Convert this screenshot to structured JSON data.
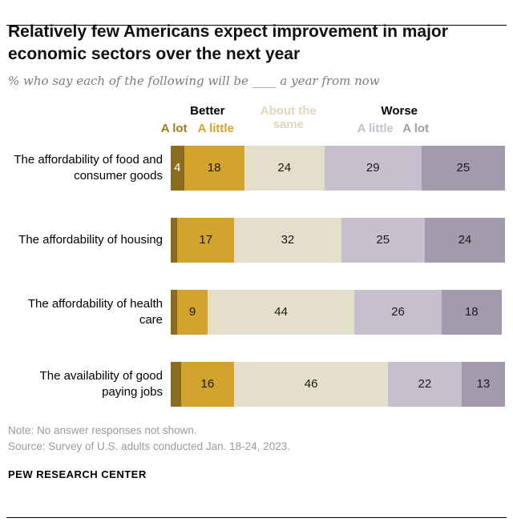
{
  "page": {
    "title": "Relatively few Americans expect improvement in major economic sectors over the next year",
    "subtitle": "% who say each of the following will be ____ a year from now",
    "note": "Note: No answer responses not shown.",
    "source": "Source: Survey of U.S. adults conducted Jan. 18-24, 2023.",
    "footer": "PEW RESEARCH CENTER"
  },
  "legend": {
    "better": "Better",
    "worse": "Worse",
    "a_lot_better": "A lot",
    "a_little_better": "A little",
    "about_same": "About the same",
    "a_little_worse": "A little",
    "a_lot_worse": "A lot",
    "colors": {
      "a_lot_better": "#a07c1f",
      "a_little_better": "#d2a42d",
      "about_same": "#ddd7bc",
      "a_little_worse": "#c6c0ce",
      "a_lot_worse": "#a49aae"
    }
  },
  "chart_data": {
    "type": "bar",
    "orientation": "horizontal-stacked",
    "title": "Relatively few Americans expect improvement in major economic sectors over the next year",
    "xlim": [
      0,
      100
    ],
    "categories": [
      "The affordability of food and consumer goods",
      "The affordability of housing",
      "The affordability of health care",
      "The availability of good paying jobs"
    ],
    "series": [
      {
        "name": "A lot better",
        "color": "#8c6b1d",
        "text_color": "#ffffff",
        "values": [
          4,
          2,
          2,
          3
        ],
        "labels": [
          "4",
          "",
          "",
          ""
        ]
      },
      {
        "name": "A little better",
        "color": "#d2a42d",
        "text_color": "#1a1a1a",
        "values": [
          18,
          17,
          9,
          16
        ],
        "labels": [
          "18",
          "17",
          "9",
          "16"
        ]
      },
      {
        "name": "About the same",
        "color": "#e4dfca",
        "text_color": "#1a1a1a",
        "values": [
          24,
          32,
          44,
          46
        ],
        "labels": [
          "24",
          "32",
          "44",
          "46"
        ]
      },
      {
        "name": "A little worse",
        "color": "#c6c0ce",
        "text_color": "#1a1a1a",
        "values": [
          29,
          25,
          26,
          22
        ],
        "labels": [
          "29",
          "25",
          "26",
          "22"
        ]
      },
      {
        "name": "A lot worse",
        "color": "#a49aae",
        "text_color": "#1a1a1a",
        "values": [
          25,
          24,
          18,
          13
        ],
        "labels": [
          "25",
          "24",
          "18",
          "13"
        ]
      }
    ]
  }
}
